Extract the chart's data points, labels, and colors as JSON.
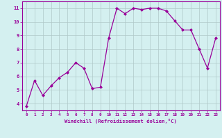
{
  "x": [
    0,
    1,
    2,
    3,
    4,
    5,
    6,
    7,
    8,
    9,
    10,
    11,
    12,
    13,
    14,
    15,
    16,
    17,
    18,
    19,
    20,
    21,
    22,
    23
  ],
  "y": [
    3.8,
    5.7,
    4.6,
    5.3,
    5.9,
    6.3,
    7.0,
    6.6,
    5.1,
    5.2,
    8.8,
    11.0,
    10.6,
    11.0,
    10.9,
    11.0,
    11.0,
    10.8,
    10.1,
    9.4,
    9.4,
    8.0,
    6.6,
    8.8
  ],
  "xlim": [
    -0.5,
    23.5
  ],
  "ylim": [
    3.5,
    11.5
  ],
  "yticks": [
    4,
    5,
    6,
    7,
    8,
    9,
    10,
    11
  ],
  "xticks": [
    0,
    1,
    2,
    3,
    4,
    5,
    6,
    7,
    8,
    9,
    10,
    11,
    12,
    13,
    14,
    15,
    16,
    17,
    18,
    19,
    20,
    21,
    22,
    23
  ],
  "xlabel": "Windchill (Refroidissement éolien,°C)",
  "line_color": "#990099",
  "marker_color": "#990099",
  "bg_color": "#d4f0f0",
  "grid_color": "#b0c8c8",
  "axis_color": "#990099",
  "tick_color": "#990099",
  "label_color": "#990099"
}
